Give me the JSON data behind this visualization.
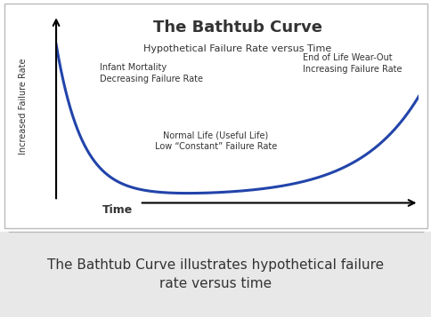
{
  "title": "The Bathtub Curve",
  "subtitle": "Hypothetical Failure Rate versus Time",
  "ylabel": "Increased Failure Rate",
  "xlabel": "Time",
  "caption": "The Bathtub Curve illustrates hypothetical failure\nrate versus time",
  "annotation_infant": "Infant Mortality\nDecreasing Failure Rate",
  "annotation_normal": "Normal Life (Useful Life)\nLow “Constant” Failure Rate",
  "annotation_eol": "End of Life Wear-Out\nIncreasing Failure Rate",
  "curve_color": "#2244aa",
  "background_color": "#ffffff",
  "chart_bg": "#f5f5f5",
  "text_color": "#333333",
  "caption_color": "#555555",
  "border_color": "#bbbbbb",
  "caption_bg": "#e8e8e8",
  "fig_width": 4.85,
  "fig_height": 3.57
}
